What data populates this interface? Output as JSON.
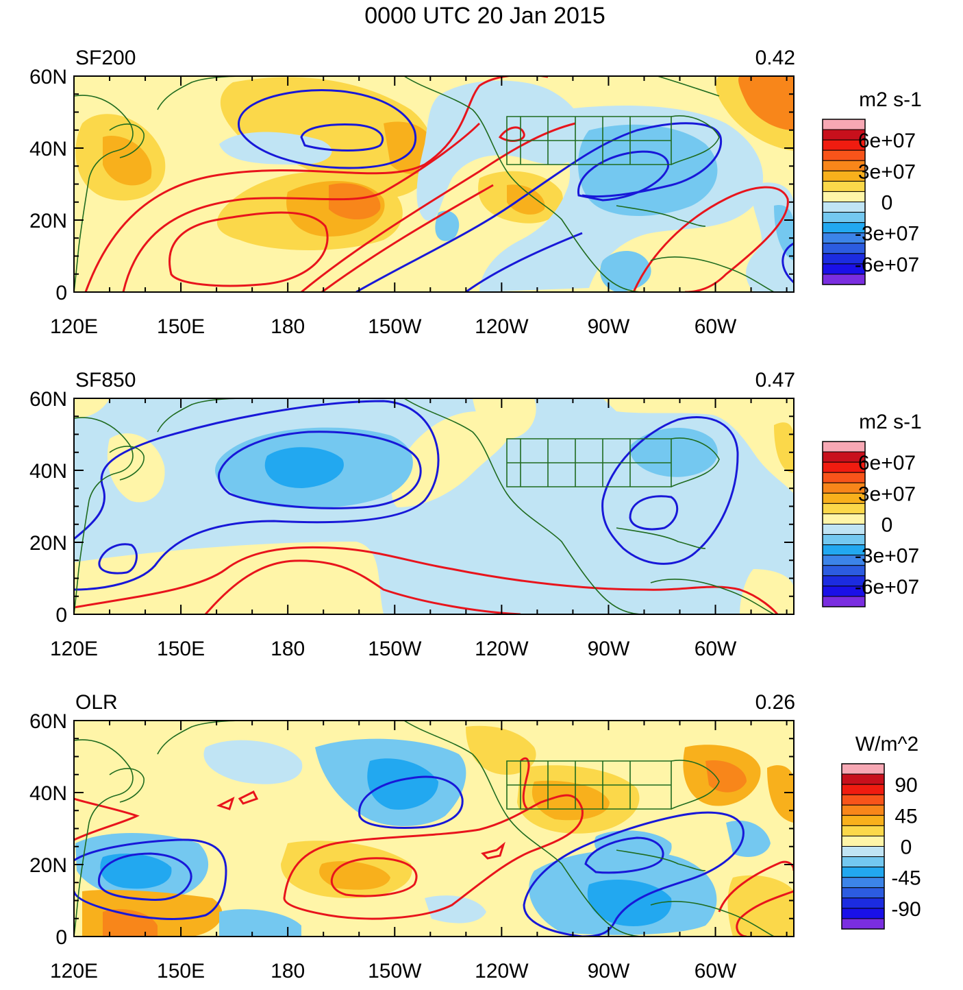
{
  "figure_title": "0000 UTC 20 Jan 2015",
  "colors": {
    "positive_contour": "#e8141c",
    "negative_contour": "#1818d8",
    "coastline": "#1f6b1f",
    "frame": "#000000"
  },
  "chart_data": [
    {
      "type": "heatmap",
      "name": "SF200",
      "title": "SF200",
      "correlation": "0.42",
      "units": "m2 s-1",
      "colorbar_ticks": [
        "6e+07",
        "3e+07",
        "0",
        "-3e+07",
        "-6e+07"
      ],
      "colorbar_colors": [
        "#f7a8b4",
        "#c8101c",
        "#f01c10",
        "#f8541a",
        "#f8861a",
        "#f8b01c",
        "#fbd84a",
        "#fff5a8",
        "#c0e4f4",
        "#74c8f0",
        "#22a8f0",
        "#3c84e8",
        "#2c5ce0",
        "#1c2ce0",
        "#1a10e8",
        "#7a2ee0"
      ],
      "x_axis": {
        "ticks": [
          "120E",
          "150E",
          "180",
          "150W",
          "120W",
          "90W",
          "60W"
        ],
        "range_deg_east": [
          120,
          322
        ]
      },
      "y_axis": {
        "ticks": [
          "60N",
          "40N",
          "20N",
          "0"
        ],
        "range_deg": [
          0,
          60
        ]
      },
      "anomaly_features": [
        {
          "lon": 141,
          "lat": 36,
          "value": 25000000.0
        },
        {
          "lon": 187,
          "lat": 24,
          "value": 25000000.0
        },
        {
          "lon": 198,
          "lat": 25,
          "value": 30000000.0
        },
        {
          "lon": 206,
          "lat": 37,
          "value": 22000000.0
        },
        {
          "lon": 178,
          "lat": 41,
          "value": -10000000.0
        },
        {
          "lon": 243,
          "lat": 26,
          "value": 20000000.0
        },
        {
          "lon": 250,
          "lat": 41,
          "value": -12000000.0
        },
        {
          "lon": 283,
          "lat": 36,
          "value": -20000000.0
        },
        {
          "lon": 275,
          "lat": 10,
          "value": -12000000.0
        },
        {
          "lon": 313,
          "lat": 51,
          "value": 35000000.0
        },
        {
          "lon": 318,
          "lat": 20,
          "value": -15000000.0
        },
        {
          "lon": 215,
          "lat": 15,
          "value": -8000000.0
        }
      ]
    },
    {
      "type": "heatmap",
      "name": "SF850",
      "title": "SF850",
      "correlation": "0.47",
      "units": "m2 s-1",
      "colorbar_ticks": [
        "6e+07",
        "3e+07",
        "0",
        "-3e+07",
        "-6e+07"
      ],
      "colorbar_colors": [
        "#f7a8b4",
        "#c8101c",
        "#f01c10",
        "#f8541a",
        "#f8861a",
        "#f8b01c",
        "#fbd84a",
        "#fff5a8",
        "#c0e4f4",
        "#74c8f0",
        "#22a8f0",
        "#3c84e8",
        "#2c5ce0",
        "#1c2ce0",
        "#1a10e8",
        "#7a2ee0"
      ],
      "x_axis": {
        "ticks": [
          "120E",
          "150E",
          "180",
          "150W",
          "120W",
          "90W",
          "60W"
        ],
        "range_deg_east": [
          120,
          322
        ]
      },
      "y_axis": {
        "ticks": [
          "60N",
          "40N",
          "20N",
          "0"
        ],
        "range_deg": [
          0,
          60
        ]
      },
      "anomaly_features": [
        {
          "lon": 180,
          "lat": 41,
          "value": -25000000.0
        },
        {
          "lon": 140,
          "lat": 30,
          "value": -8000000.0
        },
        {
          "lon": 240,
          "lat": 30,
          "value": -8000000.0
        },
        {
          "lon": 290,
          "lat": 42,
          "value": -12000000.0
        },
        {
          "lon": 190,
          "lat": 6,
          "value": 8000000.0
        },
        {
          "lon": 235,
          "lat": 55,
          "value": 6000000.0
        },
        {
          "lon": 320,
          "lat": 45,
          "value": 12000000.0
        }
      ]
    },
    {
      "type": "heatmap",
      "name": "OLR",
      "title": "OLR",
      "correlation": "0.26",
      "units": "W/m^2",
      "colorbar_ticks": [
        "90",
        "45",
        "0",
        "-45",
        "-90"
      ],
      "colorbar_colors": [
        "#f7a8b4",
        "#c8101c",
        "#f01c10",
        "#f8541a",
        "#f8861a",
        "#f8b01c",
        "#fbd84a",
        "#fff5a8",
        "#c0e4f4",
        "#74c8f0",
        "#22a8f0",
        "#3c84e8",
        "#2c5ce0",
        "#1c2ce0",
        "#1a10e8",
        "#7a2ee0"
      ],
      "x_axis": {
        "ticks": [
          "120E",
          "150E",
          "180",
          "150W",
          "120W",
          "90W",
          "60W"
        ],
        "range_deg_east": [
          120,
          322
        ]
      },
      "y_axis": {
        "ticks": [
          "60N",
          "40N",
          "20N",
          "0"
        ],
        "range_deg": [
          0,
          60
        ]
      },
      "anomaly_features": [
        {
          "lon": 135,
          "lat": 18,
          "value": -45
        },
        {
          "lon": 208,
          "lat": 38,
          "value": -40
        },
        {
          "lon": 190,
          "lat": 43,
          "value": -35
        },
        {
          "lon": 255,
          "lat": 35,
          "value": 30
        },
        {
          "lon": 300,
          "lat": 40,
          "value": 25
        },
        {
          "lon": 315,
          "lat": 38,
          "value": 35
        },
        {
          "lon": 280,
          "lat": 10,
          "value": -40
        },
        {
          "lon": 202,
          "lat": 17,
          "value": 25
        },
        {
          "lon": 140,
          "lat": 6,
          "value": 40
        },
        {
          "lon": 312,
          "lat": 28,
          "value": -35
        },
        {
          "lon": 160,
          "lat": 38,
          "value": -15
        }
      ]
    }
  ]
}
